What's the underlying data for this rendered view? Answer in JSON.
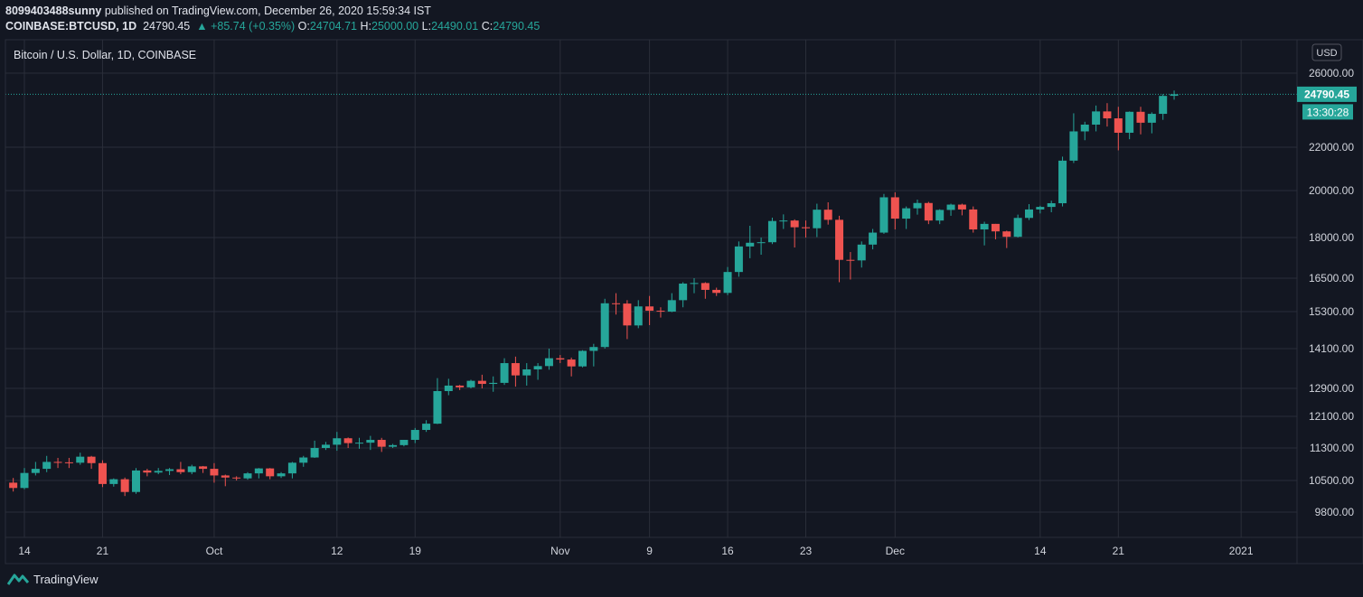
{
  "header": {
    "user": "8099403488sunny",
    "published": "published on TradingView.com, December 26, 2020 15:59:34 IST"
  },
  "quote": {
    "symbol": "COINBASE:BTCUSD, 1D",
    "last": "24790.45",
    "change_arrow": "▲",
    "change": "+85.74 (+0.35%)",
    "open_label": "O:",
    "open": "24704.71",
    "high_label": "H:",
    "high": "25000.00",
    "low_label": "L:",
    "low": "24490.01",
    "close_label": "C:",
    "close": "24790.45"
  },
  "chart_data": {
    "type": "candlestick",
    "title": "Bitcoin / U.S. Dollar, 1D, COINBASE",
    "currency_button": "USD",
    "price_ticks": [
      26000,
      22000,
      20000,
      18000,
      16500,
      15300,
      14100,
      12900,
      12100,
      11300,
      10500,
      9800
    ],
    "price_tick_labels": [
      "26000.00",
      "22000.00",
      "20000.00",
      "18000.00",
      "16500.00",
      "15300.00",
      "14100.00",
      "12900.00",
      "12100.00",
      "11300.00",
      "10500.00",
      "9800.00"
    ],
    "scale": "log",
    "last_price_label": "24790.45",
    "countdown_label": "13:30:28",
    "x_tick_labels": [
      {
        "label": "14",
        "date": "2020-09-14"
      },
      {
        "label": "21",
        "date": "2020-09-21"
      },
      {
        "label": "Oct",
        "date": "2020-10-01"
      },
      {
        "label": "12",
        "date": "2020-10-12"
      },
      {
        "label": "19",
        "date": "2020-10-19"
      },
      {
        "label": "Nov",
        "date": "2020-11-01"
      },
      {
        "label": "9",
        "date": "2020-11-09"
      },
      {
        "label": "16",
        "date": "2020-11-16"
      },
      {
        "label": "23",
        "date": "2020-11-23"
      },
      {
        "label": "Dec",
        "date": "2020-12-01"
      },
      {
        "label": "14",
        "date": "2020-12-14"
      },
      {
        "label": "21",
        "date": "2020-12-21"
      },
      {
        "label": "2021",
        "date": "2021-01-01"
      }
    ],
    "date_range": [
      "2020-09-13",
      "2020-12-26"
    ],
    "grid": true,
    "colors": {
      "up": "#26a69a",
      "down": "#ef5350",
      "background": "#131722",
      "grid": "#2a2e39"
    },
    "candles": [
      {
        "d": "2020-09-13",
        "o": 10450,
        "h": 10560,
        "l": 10250,
        "c": 10330
      },
      {
        "d": "2020-09-14",
        "o": 10330,
        "h": 10800,
        "l": 10300,
        "c": 10680
      },
      {
        "d": "2020-09-15",
        "o": 10680,
        "h": 10950,
        "l": 10620,
        "c": 10780
      },
      {
        "d": "2020-09-16",
        "o": 10780,
        "h": 11100,
        "l": 10700,
        "c": 10950
      },
      {
        "d": "2020-09-17",
        "o": 10950,
        "h": 11050,
        "l": 10800,
        "c": 10940
      },
      {
        "d": "2020-09-18",
        "o": 10940,
        "h": 11050,
        "l": 10800,
        "c": 10930
      },
      {
        "d": "2020-09-19",
        "o": 10930,
        "h": 11180,
        "l": 10880,
        "c": 11080
      },
      {
        "d": "2020-09-20",
        "o": 11080,
        "h": 11100,
        "l": 10780,
        "c": 10920
      },
      {
        "d": "2020-09-21",
        "o": 10920,
        "h": 10990,
        "l": 10350,
        "c": 10420
      },
      {
        "d": "2020-09-22",
        "o": 10420,
        "h": 10550,
        "l": 10360,
        "c": 10530
      },
      {
        "d": "2020-09-23",
        "o": 10530,
        "h": 10570,
        "l": 10150,
        "c": 10240
      },
      {
        "d": "2020-09-24",
        "o": 10240,
        "h": 10800,
        "l": 10200,
        "c": 10740
      },
      {
        "d": "2020-09-25",
        "o": 10740,
        "h": 10780,
        "l": 10600,
        "c": 10690
      },
      {
        "d": "2020-09-26",
        "o": 10690,
        "h": 10800,
        "l": 10650,
        "c": 10730
      },
      {
        "d": "2020-09-27",
        "o": 10730,
        "h": 10800,
        "l": 10630,
        "c": 10770
      },
      {
        "d": "2020-09-28",
        "o": 10770,
        "h": 10950,
        "l": 10650,
        "c": 10700
      },
      {
        "d": "2020-09-29",
        "o": 10700,
        "h": 10880,
        "l": 10650,
        "c": 10840
      },
      {
        "d": "2020-09-30",
        "o": 10840,
        "h": 10850,
        "l": 10680,
        "c": 10780
      },
      {
        "d": "2020-10-01",
        "o": 10780,
        "h": 10920,
        "l": 10450,
        "c": 10620
      },
      {
        "d": "2020-10-02",
        "o": 10620,
        "h": 10640,
        "l": 10370,
        "c": 10570
      },
      {
        "d": "2020-10-03",
        "o": 10570,
        "h": 10600,
        "l": 10500,
        "c": 10550
      },
      {
        "d": "2020-10-04",
        "o": 10550,
        "h": 10700,
        "l": 10520,
        "c": 10670
      },
      {
        "d": "2020-10-05",
        "o": 10670,
        "h": 10800,
        "l": 10550,
        "c": 10790
      },
      {
        "d": "2020-10-06",
        "o": 10790,
        "h": 10800,
        "l": 10530,
        "c": 10600
      },
      {
        "d": "2020-10-07",
        "o": 10600,
        "h": 10700,
        "l": 10560,
        "c": 10670
      },
      {
        "d": "2020-10-08",
        "o": 10670,
        "h": 10950,
        "l": 10550,
        "c": 10930
      },
      {
        "d": "2020-10-09",
        "o": 10930,
        "h": 11100,
        "l": 10830,
        "c": 11060
      },
      {
        "d": "2020-10-10",
        "o": 11060,
        "h": 11480,
        "l": 11050,
        "c": 11300
      },
      {
        "d": "2020-10-11",
        "o": 11300,
        "h": 11450,
        "l": 11250,
        "c": 11380
      },
      {
        "d": "2020-10-12",
        "o": 11380,
        "h": 11700,
        "l": 11230,
        "c": 11540
      },
      {
        "d": "2020-10-13",
        "o": 11540,
        "h": 11560,
        "l": 11300,
        "c": 11420
      },
      {
        "d": "2020-10-14",
        "o": 11420,
        "h": 11550,
        "l": 11280,
        "c": 11430
      },
      {
        "d": "2020-10-15",
        "o": 11430,
        "h": 11600,
        "l": 11250,
        "c": 11500
      },
      {
        "d": "2020-10-16",
        "o": 11500,
        "h": 11550,
        "l": 11200,
        "c": 11330
      },
      {
        "d": "2020-10-17",
        "o": 11330,
        "h": 11400,
        "l": 11300,
        "c": 11370
      },
      {
        "d": "2020-10-18",
        "o": 11370,
        "h": 11500,
        "l": 11340,
        "c": 11500
      },
      {
        "d": "2020-10-19",
        "o": 11500,
        "h": 11800,
        "l": 11420,
        "c": 11750
      },
      {
        "d": "2020-10-20",
        "o": 11750,
        "h": 12000,
        "l": 11700,
        "c": 11910
      },
      {
        "d": "2020-10-21",
        "o": 11910,
        "h": 13200,
        "l": 11900,
        "c": 12820
      },
      {
        "d": "2020-10-22",
        "o": 12820,
        "h": 13180,
        "l": 12700,
        "c": 12980
      },
      {
        "d": "2020-10-23",
        "o": 12980,
        "h": 13000,
        "l": 12850,
        "c": 12930
      },
      {
        "d": "2020-10-24",
        "o": 12930,
        "h": 13150,
        "l": 12900,
        "c": 13120
      },
      {
        "d": "2020-10-25",
        "o": 13120,
        "h": 13300,
        "l": 12900,
        "c": 13030
      },
      {
        "d": "2020-10-26",
        "o": 13030,
        "h": 13250,
        "l": 12800,
        "c": 13060
      },
      {
        "d": "2020-10-27",
        "o": 13060,
        "h": 13800,
        "l": 13000,
        "c": 13650
      },
      {
        "d": "2020-10-28",
        "o": 13650,
        "h": 13850,
        "l": 12950,
        "c": 13280
      },
      {
        "d": "2020-10-29",
        "o": 13280,
        "h": 13650,
        "l": 12980,
        "c": 13460
      },
      {
        "d": "2020-10-30",
        "o": 13460,
        "h": 13650,
        "l": 13150,
        "c": 13560
      },
      {
        "d": "2020-10-31",
        "o": 13560,
        "h": 14100,
        "l": 13450,
        "c": 13800
      },
      {
        "d": "2020-11-01",
        "o": 13800,
        "h": 13900,
        "l": 13650,
        "c": 13760
      },
      {
        "d": "2020-11-02",
        "o": 13760,
        "h": 13820,
        "l": 13250,
        "c": 13550
      },
      {
        "d": "2020-11-03",
        "o": 13550,
        "h": 14050,
        "l": 13520,
        "c": 14030
      },
      {
        "d": "2020-11-04",
        "o": 14030,
        "h": 14250,
        "l": 13550,
        "c": 14150
      },
      {
        "d": "2020-11-05",
        "o": 14150,
        "h": 15750,
        "l": 14100,
        "c": 15590
      },
      {
        "d": "2020-11-06",
        "o": 15590,
        "h": 15950,
        "l": 15200,
        "c": 15580
      },
      {
        "d": "2020-11-07",
        "o": 15580,
        "h": 15700,
        "l": 14400,
        "c": 14840
      },
      {
        "d": "2020-11-08",
        "o": 14840,
        "h": 15700,
        "l": 14750,
        "c": 15480
      },
      {
        "d": "2020-11-09",
        "o": 15480,
        "h": 15850,
        "l": 14850,
        "c": 15330
      },
      {
        "d": "2020-11-10",
        "o": 15330,
        "h": 15450,
        "l": 15100,
        "c": 15300
      },
      {
        "d": "2020-11-11",
        "o": 15300,
        "h": 15950,
        "l": 15280,
        "c": 15700
      },
      {
        "d": "2020-11-12",
        "o": 15700,
        "h": 16350,
        "l": 15450,
        "c": 16300
      },
      {
        "d": "2020-11-13",
        "o": 16300,
        "h": 16500,
        "l": 15950,
        "c": 16320
      },
      {
        "d": "2020-11-14",
        "o": 16320,
        "h": 16350,
        "l": 15750,
        "c": 16070
      },
      {
        "d": "2020-11-15",
        "o": 16070,
        "h": 16150,
        "l": 15850,
        "c": 15960
      },
      {
        "d": "2020-11-16",
        "o": 15960,
        "h": 16900,
        "l": 15880,
        "c": 16720
      },
      {
        "d": "2020-11-17",
        "o": 16720,
        "h": 17850,
        "l": 16550,
        "c": 17660
      },
      {
        "d": "2020-11-18",
        "o": 17660,
        "h": 18480,
        "l": 17220,
        "c": 17800
      },
      {
        "d": "2020-11-19",
        "o": 17800,
        "h": 18000,
        "l": 17350,
        "c": 17820
      },
      {
        "d": "2020-11-20",
        "o": 17820,
        "h": 18820,
        "l": 17750,
        "c": 18680
      },
      {
        "d": "2020-11-21",
        "o": 18680,
        "h": 18960,
        "l": 18350,
        "c": 18700
      },
      {
        "d": "2020-11-22",
        "o": 18700,
        "h": 18750,
        "l": 17620,
        "c": 18420
      },
      {
        "d": "2020-11-23",
        "o": 18420,
        "h": 18700,
        "l": 18000,
        "c": 18380
      },
      {
        "d": "2020-11-24",
        "o": 18380,
        "h": 19420,
        "l": 18020,
        "c": 19160
      },
      {
        "d": "2020-11-25",
        "o": 19160,
        "h": 19480,
        "l": 18530,
        "c": 18730
      },
      {
        "d": "2020-11-26",
        "o": 18730,
        "h": 18900,
        "l": 16350,
        "c": 17160
      },
      {
        "d": "2020-11-27",
        "o": 17160,
        "h": 17450,
        "l": 16450,
        "c": 17140
      },
      {
        "d": "2020-11-28",
        "o": 17140,
        "h": 17850,
        "l": 16880,
        "c": 17730
      },
      {
        "d": "2020-11-29",
        "o": 17730,
        "h": 18350,
        "l": 17550,
        "c": 18200
      },
      {
        "d": "2020-11-30",
        "o": 18200,
        "h": 19850,
        "l": 18150,
        "c": 19700
      },
      {
        "d": "2020-12-01",
        "o": 19700,
        "h": 19920,
        "l": 18330,
        "c": 18780
      },
      {
        "d": "2020-12-02",
        "o": 18780,
        "h": 19300,
        "l": 18350,
        "c": 19220
      },
      {
        "d": "2020-12-03",
        "o": 19220,
        "h": 19600,
        "l": 18950,
        "c": 19450
      },
      {
        "d": "2020-12-04",
        "o": 19450,
        "h": 19500,
        "l": 18550,
        "c": 18700
      },
      {
        "d": "2020-12-05",
        "o": 18700,
        "h": 19180,
        "l": 18550,
        "c": 19150
      },
      {
        "d": "2020-12-06",
        "o": 19150,
        "h": 19420,
        "l": 18900,
        "c": 19380
      },
      {
        "d": "2020-12-07",
        "o": 19380,
        "h": 19420,
        "l": 18920,
        "c": 19170
      },
      {
        "d": "2020-12-08",
        "o": 19170,
        "h": 19300,
        "l": 18200,
        "c": 18330
      },
      {
        "d": "2020-12-09",
        "o": 18330,
        "h": 18650,
        "l": 17700,
        "c": 18560
      },
      {
        "d": "2020-12-10",
        "o": 18560,
        "h": 18560,
        "l": 17930,
        "c": 18250
      },
      {
        "d": "2020-12-11",
        "o": 18250,
        "h": 18280,
        "l": 17600,
        "c": 18030
      },
      {
        "d": "2020-12-12",
        "o": 18030,
        "h": 18950,
        "l": 18000,
        "c": 18810
      },
      {
        "d": "2020-12-13",
        "o": 18810,
        "h": 19400,
        "l": 18720,
        "c": 19170
      },
      {
        "d": "2020-12-14",
        "o": 19170,
        "h": 19330,
        "l": 19000,
        "c": 19280
      },
      {
        "d": "2020-12-15",
        "o": 19280,
        "h": 19550,
        "l": 19050,
        "c": 19440
      },
      {
        "d": "2020-12-16",
        "o": 19440,
        "h": 21550,
        "l": 19300,
        "c": 21360
      },
      {
        "d": "2020-12-17",
        "o": 21360,
        "h": 23750,
        "l": 21250,
        "c": 22800
      },
      {
        "d": "2020-12-18",
        "o": 22800,
        "h": 23300,
        "l": 22350,
        "c": 23150
      },
      {
        "d": "2020-12-19",
        "o": 23150,
        "h": 24170,
        "l": 22800,
        "c": 23850
      },
      {
        "d": "2020-12-20",
        "o": 23850,
        "h": 24300,
        "l": 23050,
        "c": 23480
      },
      {
        "d": "2020-12-21",
        "o": 23480,
        "h": 24100,
        "l": 21850,
        "c": 22730
      },
      {
        "d": "2020-12-22",
        "o": 22730,
        "h": 23850,
        "l": 22400,
        "c": 23830
      },
      {
        "d": "2020-12-23",
        "o": 23830,
        "h": 24100,
        "l": 22650,
        "c": 23250
      },
      {
        "d": "2020-12-24",
        "o": 23250,
        "h": 23800,
        "l": 22700,
        "c": 23720
      },
      {
        "d": "2020-12-25",
        "o": 23720,
        "h": 24800,
        "l": 23400,
        "c": 24700
      },
      {
        "d": "2020-12-26",
        "o": 24704.71,
        "h": 25000,
        "l": 24490.01,
        "c": 24790.45
      }
    ]
  },
  "footer": {
    "brand": "TradingView"
  }
}
